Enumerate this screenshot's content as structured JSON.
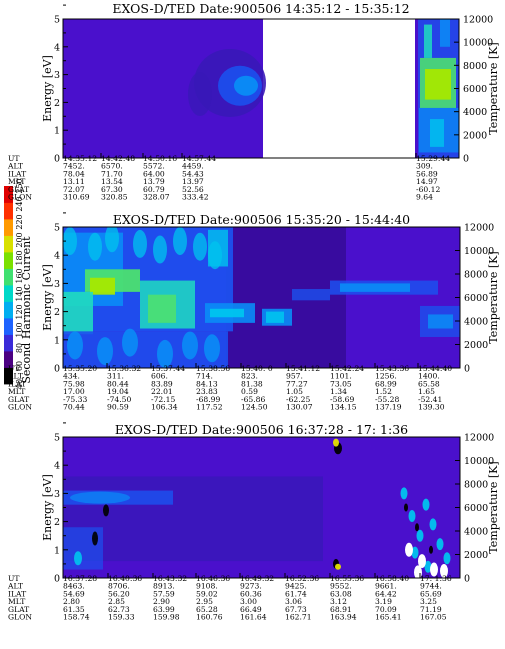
{
  "figure": {
    "colorbar": {
      "label": "Second Harmonic Current",
      "ticks": [
        "40",
        "60",
        "80",
        "100",
        "120",
        "140",
        "160",
        "180",
        "200",
        "220",
        "240",
        "250"
      ],
      "colors": [
        "#000000",
        "#4b0082",
        "#3a2ad8",
        "#1e63ff",
        "#00aef0",
        "#00d8c8",
        "#40e070",
        "#7be000",
        "#d8e000",
        "#ff9a00",
        "#ff3000",
        "#e00000"
      ]
    }
  },
  "chart_data": [
    {
      "type": "heatmap",
      "title": "EXOS-D/TED Date:900506 14:35:12 - 15:35:12",
      "ylabel": "Energy [eV]",
      "y2label": "Temperature [K]",
      "ylim": [
        0,
        5
      ],
      "y2lim": [
        0,
        12000
      ],
      "yticks": [
        "0",
        "1",
        "2",
        "3",
        "4",
        "5"
      ],
      "y2ticks": [
        "0",
        "2000",
        "4000",
        "6000",
        "8000",
        "10000",
        "12000"
      ],
      "data_gap": true,
      "ephemeris": {
        "labels": [
          "UT",
          "ALT",
          "ILAT",
          "MLT",
          "GLAT",
          "GLON"
        ],
        "columns": [
          [
            "14:35:12",
            "7452.",
            "78.04",
            "13.11",
            "72.07",
            "310.69"
          ],
          [
            "14:42:48",
            "6570.",
            "71.70",
            "13.54",
            "67.30",
            "320.85"
          ],
          [
            "14:50:16",
            "5572.",
            "64.00",
            "13.79",
            "60.79",
            "328.07"
          ],
          [
            "14:57:44",
            "4459.",
            "54.43",
            "13.97",
            "52.56",
            "333.42"
          ],
          [
            "15:29:44",
            "309.",
            "56.89",
            "14.97",
            "-60.12",
            "9.64"
          ]
        ]
      }
    },
    {
      "type": "heatmap",
      "title": "EXOS-D/TED Date:900506 15:35:20 - 15:44:40",
      "ylabel": "Energy [eV]",
      "y2label": "Temperature [K]",
      "ylim": [
        0,
        5
      ],
      "y2lim": [
        0,
        12000
      ],
      "yticks": [
        "0",
        "1",
        "2",
        "3",
        "4",
        "5"
      ],
      "y2ticks": [
        "0",
        "2000",
        "4000",
        "6000",
        "8000",
        "10000",
        "12000"
      ],
      "ephemeris": {
        "labels": [
          "UT",
          "ALT",
          "ILAT",
          "MLT",
          "GLAT",
          "GLON"
        ],
        "columns": [
          [
            "15:35:20",
            "434.",
            "75.98",
            "17.00",
            "-75.33",
            "70.44"
          ],
          [
            "15:36:32",
            "311.",
            "80.44",
            "19.04",
            "-74.50",
            "90.59"
          ],
          [
            "15:37:44",
            "606.",
            "83.89",
            "22.01",
            "-72.15",
            "106.34"
          ],
          [
            "15:38:56",
            "714.",
            "84.13",
            "23.83",
            "-68.99",
            "117.52"
          ],
          [
            "15:40: 0",
            "823.",
            "81.38",
            "0.59",
            "-65.86",
            "124.50"
          ],
          [
            "15:41:12",
            "957.",
            "77.27",
            "1.05",
            "-62.25",
            "130.07"
          ],
          [
            "15:42:24",
            "1101.",
            "73.05",
            "1.34",
            "-58.69",
            "134.15"
          ],
          [
            "15:43:36",
            "1256.",
            "68.99",
            "1.52",
            "-55.28",
            "137.19"
          ],
          [
            "15:44:40",
            "1400.",
            "65.58",
            "1.65",
            "-52.41",
            "139.30"
          ]
        ]
      }
    },
    {
      "type": "heatmap",
      "title": "EXOS-D/TED Date:900506 16:37:28 - 17: 1:36",
      "ylabel": "Energy [eV]",
      "y2label": "Temperature [K]",
      "ylim": [
        0,
        5
      ],
      "y2lim": [
        0,
        12000
      ],
      "yticks": [
        "0",
        "1",
        "2",
        "3",
        "4",
        "5"
      ],
      "y2ticks": [
        "0",
        "2000",
        "4000",
        "6000",
        "8000",
        "10000",
        "12000"
      ],
      "ephemeris": {
        "labels": [
          "UT",
          "ALT",
          "ILAT",
          "MLT",
          "GLAT",
          "GLON"
        ],
        "columns": [
          [
            "16:37:28",
            "8463.",
            "54.69",
            "2.80",
            "61.35",
            "158.74"
          ],
          [
            "16:40:36",
            "8706.",
            "56.20",
            "2.85",
            "62.73",
            "159.33"
          ],
          [
            "16:43:32",
            "8913.",
            "57.59",
            "2.90",
            "63.99",
            "159.98"
          ],
          [
            "16:46:36",
            "9108.",
            "59.02",
            "2.95",
            "65.28",
            "160.76"
          ],
          [
            "16:49:32",
            "9273.",
            "60.36",
            "3.00",
            "66.49",
            "161.64"
          ],
          [
            "16:52:36",
            "9425.",
            "61.74",
            "3.06",
            "67.73",
            "162.71"
          ],
          [
            "16:55:36",
            "9552.",
            "63.08",
            "3.12",
            "68.91",
            "163.94"
          ],
          [
            "16:58:40",
            "9661.",
            "64.42",
            "3.19",
            "70.09",
            "165.41"
          ],
          [
            "17: 1:36",
            "9744.",
            "65.69",
            "3.25",
            "71.19",
            "167.05"
          ]
        ]
      }
    }
  ]
}
